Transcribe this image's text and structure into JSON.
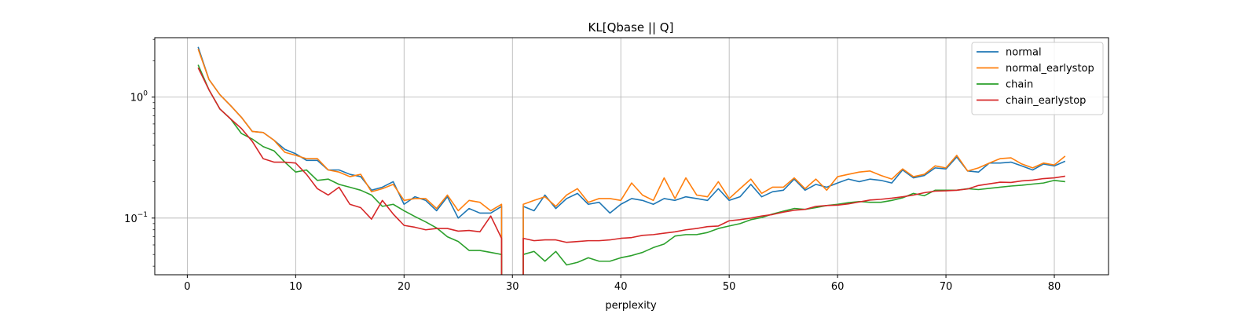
{
  "chart_data": {
    "type": "line",
    "title": "KL[Qbase || Q]",
    "xlabel": "perplexity",
    "ylabel": "",
    "xlim": [
      -3,
      85
    ],
    "ylim": [
      0.034,
      3.1
    ],
    "yscale": "log",
    "xticks": [
      0,
      10,
      20,
      30,
      40,
      50,
      60,
      70,
      80
    ],
    "yticks": [
      {
        "value": 0.1,
        "base": "10",
        "exp": "−1"
      },
      {
        "value": 1,
        "base": "10",
        "exp": "0"
      }
    ],
    "grid": true,
    "legend_position": "top-right",
    "x": [
      1,
      2,
      3,
      4,
      5,
      6,
      7,
      8,
      9,
      10,
      11,
      12,
      13,
      14,
      15,
      16,
      17,
      18,
      19,
      20,
      21,
      22,
      23,
      24,
      25,
      26,
      27,
      28,
      29,
      30,
      31,
      32,
      33,
      34,
      35,
      36,
      37,
      38,
      39,
      40,
      41,
      42,
      43,
      44,
      45,
      46,
      47,
      48,
      49,
      50,
      51,
      52,
      53,
      54,
      55,
      56,
      57,
      58,
      59,
      60,
      61,
      62,
      63,
      64,
      65,
      66,
      67,
      68,
      69,
      70,
      71,
      72,
      73,
      74,
      75,
      76,
      77,
      78,
      79,
      80,
      81
    ],
    "series": [
      {
        "name": "normal",
        "color": "#1f77b4",
        "values": [
          2.6,
          1.4,
          1.05,
          0.85,
          0.68,
          0.52,
          0.51,
          0.44,
          0.37,
          0.34,
          0.3,
          0.3,
          0.25,
          0.25,
          0.23,
          0.22,
          0.17,
          0.18,
          0.2,
          0.13,
          0.15,
          0.14,
          0.115,
          0.15,
          0.1,
          0.12,
          0.11,
          0.11,
          0.125,
          null,
          0.125,
          0.115,
          0.155,
          0.12,
          0.145,
          0.16,
          0.13,
          0.135,
          0.11,
          0.13,
          0.145,
          0.14,
          0.13,
          0.145,
          0.14,
          0.15,
          0.145,
          0.14,
          0.175,
          0.14,
          0.15,
          0.19,
          0.15,
          0.165,
          0.17,
          0.21,
          0.17,
          0.19,
          0.18,
          0.195,
          0.21,
          0.2,
          0.21,
          0.205,
          0.195,
          0.25,
          0.215,
          0.225,
          0.26,
          0.255,
          0.32,
          0.245,
          0.24,
          0.285,
          0.285,
          0.29,
          0.27,
          0.25,
          0.28,
          0.27,
          0.295
        ]
      },
      {
        "name": "normal_earlystop",
        "color": "#ff7f0e",
        "values": [
          2.5,
          1.4,
          1.05,
          0.85,
          0.68,
          0.52,
          0.51,
          0.44,
          0.35,
          0.33,
          0.31,
          0.31,
          0.25,
          0.24,
          0.22,
          0.23,
          0.165,
          0.175,
          0.19,
          0.14,
          0.145,
          0.145,
          0.12,
          0.155,
          0.115,
          0.14,
          0.135,
          0.115,
          0.13,
          null,
          0.13,
          0.14,
          0.15,
          0.125,
          0.155,
          0.175,
          0.135,
          0.145,
          0.145,
          0.14,
          0.195,
          0.155,
          0.14,
          0.215,
          0.145,
          0.215,
          0.155,
          0.15,
          0.2,
          0.145,
          0.175,
          0.21,
          0.16,
          0.18,
          0.18,
          0.215,
          0.175,
          0.21,
          0.17,
          0.22,
          0.23,
          0.24,
          0.245,
          0.225,
          0.21,
          0.255,
          0.22,
          0.23,
          0.27,
          0.26,
          0.33,
          0.245,
          0.26,
          0.285,
          0.31,
          0.315,
          0.28,
          0.26,
          0.285,
          0.275,
          0.325
        ]
      },
      {
        "name": "chain",
        "color": "#2ca02c",
        "values": [
          1.85,
          1.15,
          0.8,
          0.66,
          0.5,
          0.45,
          0.39,
          0.36,
          0.29,
          0.24,
          0.25,
          0.205,
          0.21,
          0.19,
          0.18,
          0.17,
          0.155,
          0.125,
          0.13,
          0.115,
          0.103,
          0.093,
          0.083,
          0.07,
          0.064,
          0.054,
          0.054,
          0.052,
          0.05,
          null,
          0.05,
          0.053,
          0.044,
          0.053,
          0.041,
          0.043,
          0.047,
          0.044,
          0.044,
          0.047,
          0.049,
          0.052,
          0.057,
          0.061,
          0.071,
          0.073,
          0.073,
          0.076,
          0.082,
          0.086,
          0.09,
          0.097,
          0.101,
          0.108,
          0.114,
          0.12,
          0.118,
          0.122,
          0.127,
          0.13,
          0.134,
          0.137,
          0.135,
          0.135,
          0.14,
          0.147,
          0.16,
          0.153,
          0.17,
          0.17,
          0.17,
          0.175,
          0.172,
          0.176,
          0.18,
          0.184,
          0.187,
          0.191,
          0.195,
          0.205,
          0.2
        ]
      },
      {
        "name": "chain_earlystop",
        "color": "#d62728",
        "values": [
          1.75,
          1.15,
          0.8,
          0.66,
          0.55,
          0.43,
          0.31,
          0.29,
          0.29,
          0.285,
          0.23,
          0.175,
          0.155,
          0.18,
          0.13,
          0.122,
          0.098,
          0.14,
          0.108,
          0.087,
          0.084,
          0.08,
          0.082,
          0.082,
          0.078,
          0.079,
          0.077,
          0.104,
          0.068,
          null,
          0.068,
          0.065,
          0.066,
          0.066,
          0.063,
          0.064,
          0.065,
          0.065,
          0.066,
          0.068,
          0.069,
          0.072,
          0.073,
          0.075,
          0.077,
          0.08,
          0.082,
          0.085,
          0.086,
          0.095,
          0.097,
          0.1,
          0.104,
          0.107,
          0.112,
          0.116,
          0.118,
          0.125,
          0.127,
          0.128,
          0.131,
          0.136,
          0.141,
          0.143,
          0.146,
          0.15,
          0.155,
          0.162,
          0.167,
          0.168,
          0.17,
          0.174,
          0.186,
          0.192,
          0.198,
          0.197,
          0.203,
          0.206,
          0.212,
          0.215,
          0.222
        ]
      }
    ]
  }
}
